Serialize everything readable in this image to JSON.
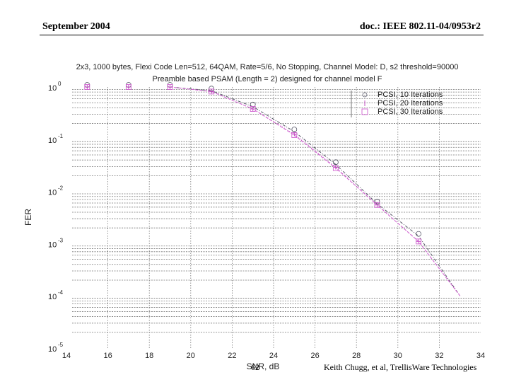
{
  "slide": {
    "header_left": "September 2004",
    "header_right": "doc.: IEEE 802.11-04/0953r2",
    "page_number": "62",
    "footer_author": "Keith Chugg, et al, TrellisWare Technologies"
  },
  "chart_data": {
    "type": "line",
    "title": "2x3, 1000 bytes, Flexi Code Len=512, 64QAM, Rate=5/6, No Stopping, Channel Model: D, s2 threshold=90000",
    "subtitle": "Preamble based PSAM (Length = 2) designed for channel model F",
    "xlabel": "SNR, dB",
    "ylabel": "FER",
    "yscale": "log",
    "xlim": [
      14,
      34
    ],
    "ylim": [
      1e-05,
      1
    ],
    "xticks": [
      14,
      16,
      18,
      20,
      22,
      24,
      26,
      28,
      30,
      32,
      34
    ],
    "yticks": [
      "10^0",
      "10^-1",
      "10^-2",
      "10^-3",
      "10^-4",
      "10^-5"
    ],
    "grid": true,
    "legend_position": "upper right",
    "x": [
      15,
      17,
      19,
      21,
      23,
      25,
      27,
      29,
      31,
      33
    ],
    "series": [
      {
        "name": "PCSI, 10 Iterations",
        "marker": "circle",
        "line": "dash-dot",
        "color": "#555566",
        "values": [
          1.0,
          1.0,
          1.0,
          0.85,
          0.42,
          0.14,
          0.033,
          0.0058,
          0.0014,
          0.0001
        ]
      },
      {
        "name": "PCSI, 20 Iterations",
        "marker": "plus",
        "line": "dotted",
        "color": "#c040c0",
        "values": [
          1.0,
          1.0,
          1.0,
          0.82,
          0.38,
          0.125,
          0.029,
          0.0055,
          0.0011,
          0.0001
        ]
      },
      {
        "name": "PCSI, 30 Iterations",
        "marker": "square",
        "line": "dashed",
        "color": "#d060d0",
        "values": [
          1.0,
          1.0,
          1.0,
          0.82,
          0.38,
          0.12,
          0.028,
          0.0055,
          0.0011,
          0.0001
        ]
      }
    ]
  }
}
